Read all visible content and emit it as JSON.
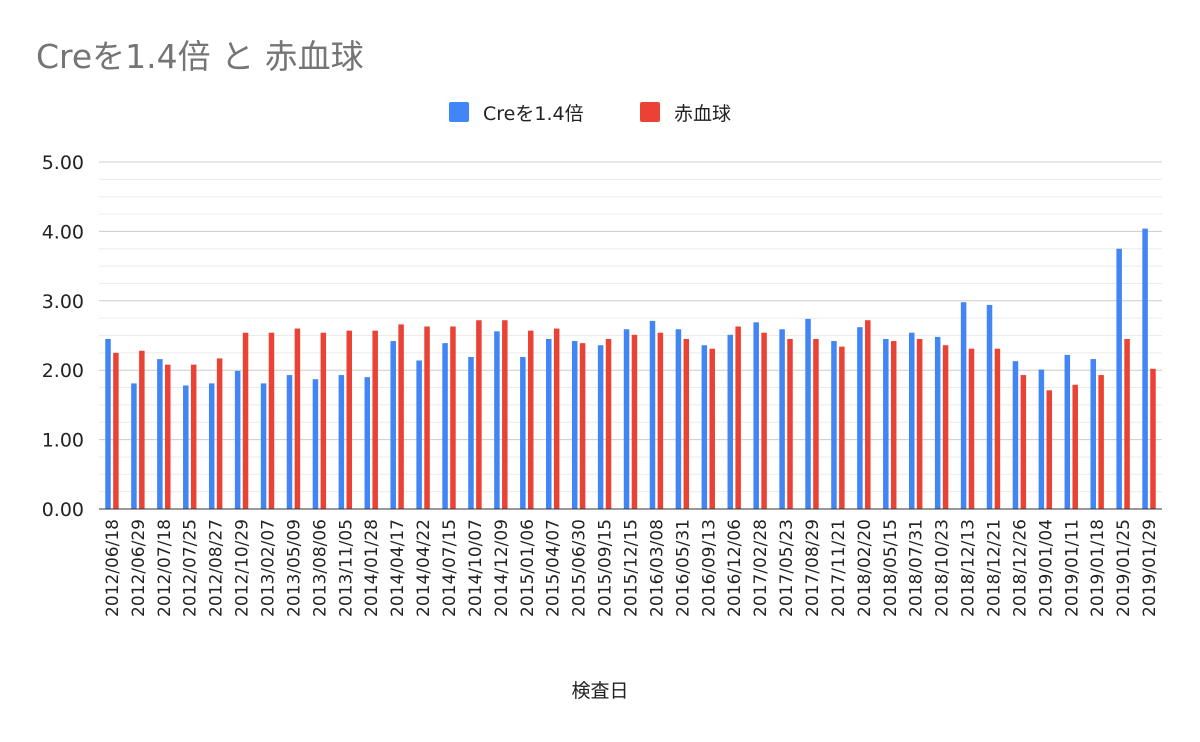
{
  "chart_data": {
    "type": "bar",
    "title": "Creを1.4倍 と 赤血球",
    "xlabel": "検査日",
    "ylabel": "",
    "ylim": [
      0,
      5
    ],
    "yticks": [
      "0.00",
      "1.00",
      "2.00",
      "3.00",
      "4.00",
      "5.00"
    ],
    "grid": true,
    "legend_position": "top",
    "categories": [
      "2012/06/18",
      "2012/06/29",
      "2012/07/18",
      "2012/07/25",
      "2012/08/27",
      "2012/10/29",
      "2013/02/07",
      "2013/05/09",
      "2013/08/06",
      "2013/11/05",
      "2014/01/28",
      "2014/04/17",
      "2014/04/22",
      "2014/07/15",
      "2014/10/07",
      "2014/12/09",
      "2015/01/06",
      "2015/04/07",
      "2015/06/30",
      "2015/09/15",
      "2015/12/15",
      "2016/03/08",
      "2016/05/31",
      "2016/09/13",
      "2016/12/06",
      "2017/02/28",
      "2017/05/23",
      "2017/08/29",
      "2017/11/21",
      "2018/02/20",
      "2018/05/15",
      "2018/07/31",
      "2018/10/23",
      "2018/12/13",
      "2018/12/21",
      "2018/12/26",
      "2019/01/04",
      "2019/01/11",
      "2019/01/18",
      "2019/01/25",
      "2019/01/29"
    ],
    "series": [
      {
        "name": "Creを1.4倍",
        "color": "#4285f4",
        "values": [
          2.45,
          1.81,
          2.16,
          1.78,
          1.81,
          1.99,
          1.81,
          1.93,
          1.87,
          1.93,
          1.9,
          2.42,
          2.14,
          2.39,
          2.19,
          2.56,
          2.19,
          2.45,
          2.42,
          2.36,
          2.59,
          2.71,
          2.59,
          2.36,
          2.51,
          2.69,
          2.59,
          2.74,
          2.42,
          2.62,
          2.45,
          2.54,
          2.48,
          2.98,
          2.94,
          2.13,
          2.01,
          2.22,
          2.16,
          3.75,
          4.04
        ]
      },
      {
        "name": "赤血球",
        "color": "#ea4335",
        "values": [
          2.25,
          2.28,
          2.08,
          2.08,
          2.17,
          2.54,
          2.54,
          2.6,
          2.54,
          2.57,
          2.57,
          2.66,
          2.63,
          2.63,
          2.72,
          2.72,
          2.57,
          2.6,
          2.39,
          2.45,
          2.51,
          2.54,
          2.45,
          2.31,
          2.63,
          2.54,
          2.45,
          2.45,
          2.34,
          2.72,
          2.42,
          2.45,
          2.36,
          2.31,
          2.31,
          1.93,
          1.71,
          1.79,
          1.93,
          2.45,
          2.02
        ]
      }
    ]
  }
}
